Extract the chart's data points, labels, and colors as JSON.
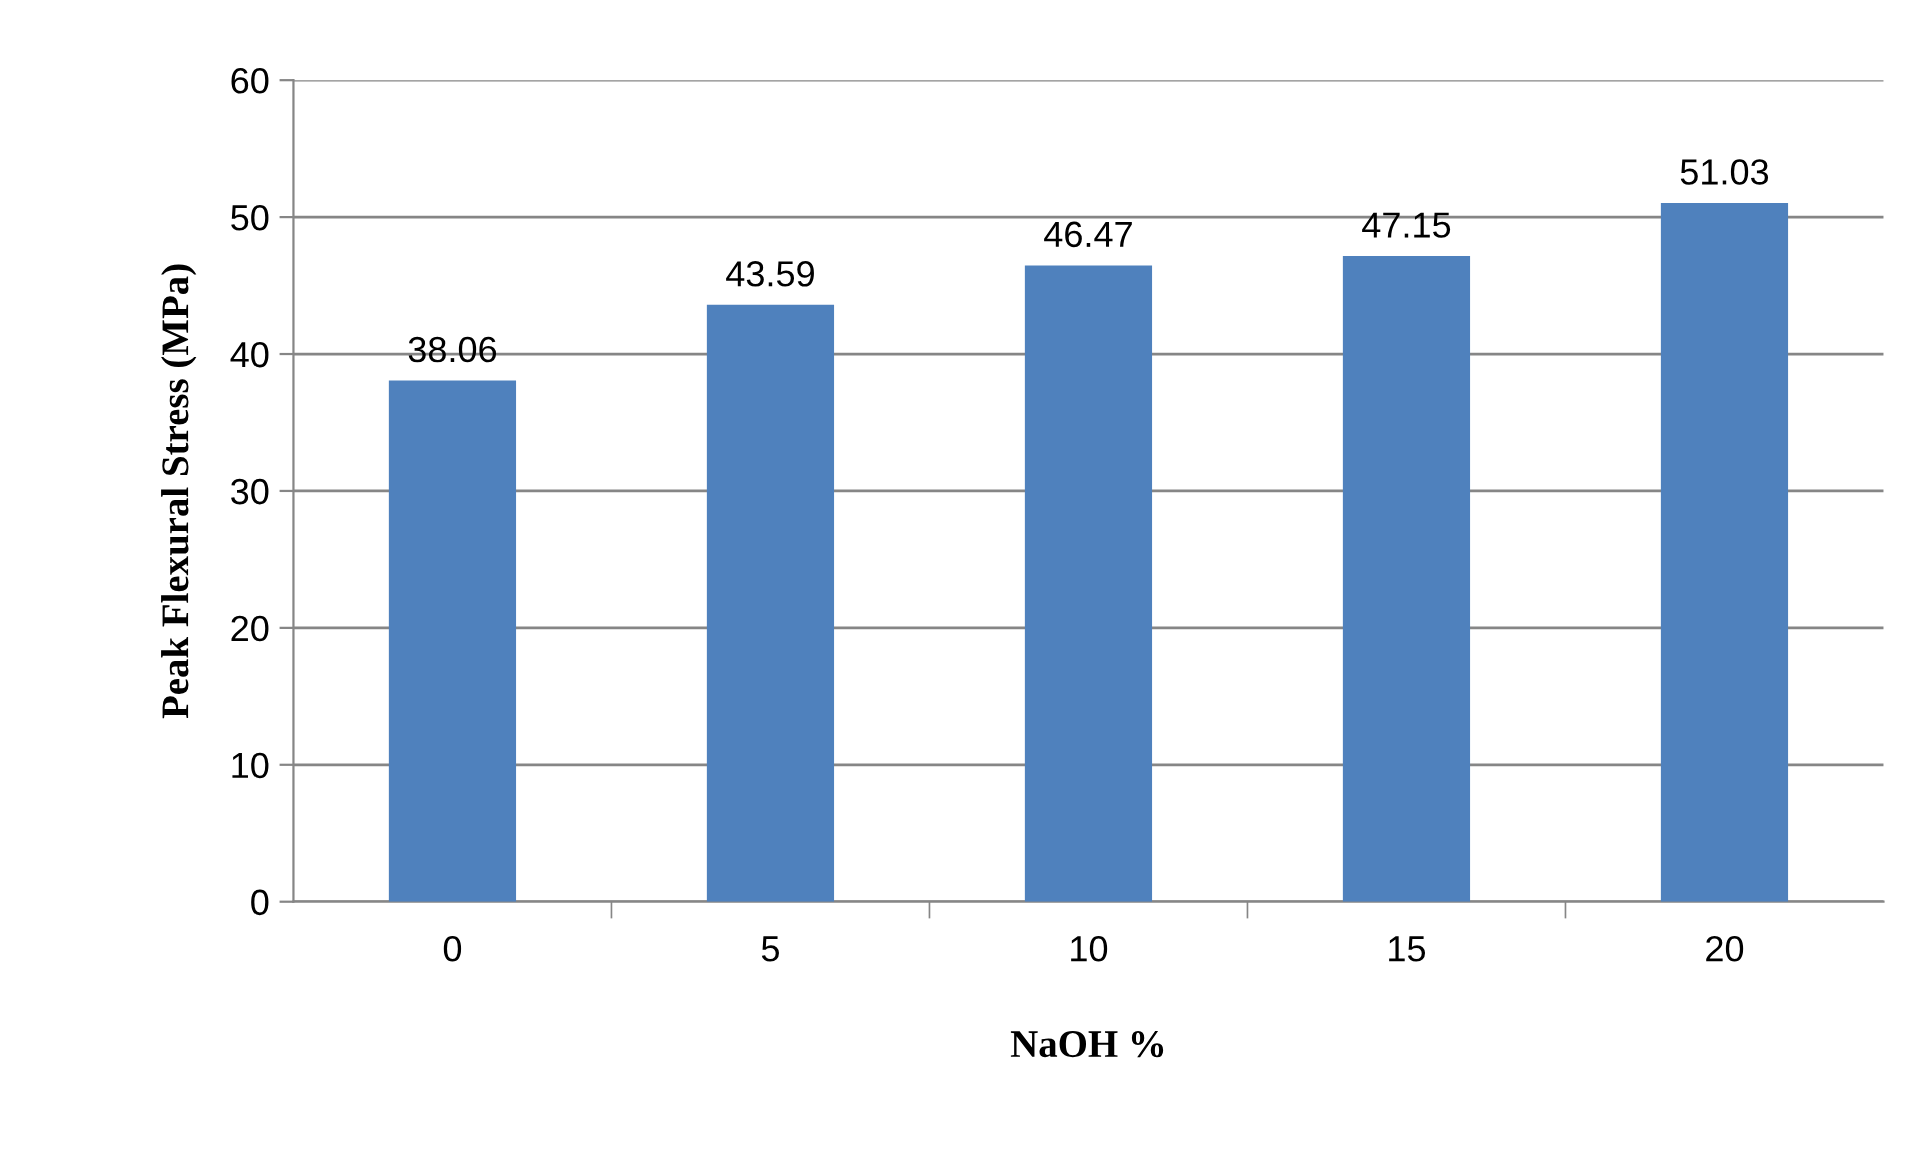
{
  "chart_data": {
    "type": "bar",
    "xlabel": "NaOH %",
    "ylabel": "Peak Flexural Stress (MPa)",
    "categories": [
      "0",
      "5",
      "10",
      "15",
      "20"
    ],
    "values": [
      38.06,
      43.59,
      46.47,
      47.15,
      51.03
    ],
    "color": "#4f81bd",
    "ylim": [
      0,
      60
    ],
    "yticks": [
      0,
      10,
      20,
      30,
      40,
      50,
      60
    ],
    "grid": "y",
    "data_labels": true
  }
}
